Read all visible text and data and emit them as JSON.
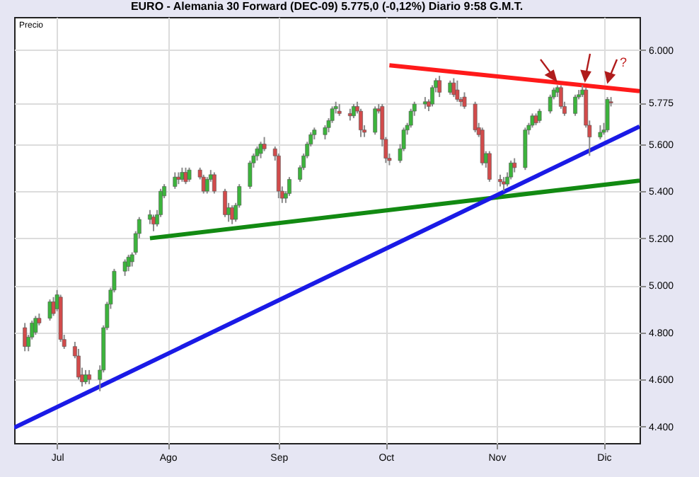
{
  "chart_data": {
    "type": "candlestick",
    "title": "EURO - Alemania 30 Forward (DEC-09)   5.775,0 (-0,12%)   Diario  9:58 G.M.T.",
    "ylabel": "Precio",
    "x": [
      "--06-22",
      "--06-23",
      "--06-24",
      "--06-25",
      "--06-26",
      "--06-29",
      "--06-30",
      "--07-01",
      "--07-02",
      "--07-03",
      "--07-06",
      "--07-07",
      "--07-08",
      "--07-09",
      "--07-10",
      "--07-13",
      "--07-14",
      "--07-15",
      "--07-16",
      "--07-17",
      "--07-20",
      "--07-21",
      "--07-22",
      "--07-23",
      "--07-24",
      "--07-27",
      "--07-28",
      "--07-29",
      "--07-30",
      "--07-31",
      "--08-03",
      "--08-04",
      "--08-05",
      "--08-06",
      "--08-07",
      "--08-10",
      "--08-11",
      "--08-12",
      "--08-13",
      "--08-14",
      "--08-17",
      "--08-18",
      "--08-19",
      "--08-20",
      "--08-21",
      "--08-24",
      "--08-25",
      "--08-26",
      "--08-27",
      "--08-28",
      "--08-31",
      "--09-01",
      "--09-02",
      "--09-03",
      "--09-04",
      "--09-07",
      "--09-08",
      "--09-09",
      "--09-10",
      "--09-11",
      "--09-14",
      "--09-15",
      "--09-16",
      "--09-17",
      "--09-18",
      "--09-21",
      "--09-22",
      "--09-23",
      "--09-24",
      "--09-25",
      "--09-28",
      "--09-29",
      "--09-30",
      "--10-01",
      "--10-02",
      "--10-05",
      "--10-06",
      "--10-07",
      "--10-08",
      "--10-09",
      "--10-12",
      "--10-13",
      "--10-14",
      "--10-15",
      "--10-16",
      "--10-19",
      "--10-20",
      "--10-21",
      "--10-22",
      "--10-23",
      "--10-26",
      "--10-27",
      "--10-28",
      "--10-29",
      "--10-30",
      "--11-02",
      "--11-03",
      "--11-04",
      "--11-05",
      "--11-06",
      "--11-09",
      "--11-10",
      "--11-11",
      "--11-12",
      "--11-13",
      "--11-16",
      "--11-17",
      "--11-18",
      "--11-19",
      "--11-20",
      "--11-23",
      "--11-24",
      "--11-25",
      "--11-26",
      "--11-27",
      "--11-30",
      "--12-01",
      "--12-02",
      "--12-03"
    ],
    "ohlc": [
      [
        4820,
        4840,
        4720,
        4740
      ],
      [
        4740,
        4790,
        4720,
        4780
      ],
      [
        4780,
        4850,
        4770,
        4840
      ],
      [
        4800,
        4870,
        4790,
        4860
      ],
      [
        4860,
        4880,
        4830,
        4840
      ],
      [
        4860,
        4940,
        4850,
        4930
      ],
      [
        4930,
        4950,
        4870,
        4880
      ],
      [
        4900,
        4980,
        4890,
        4960
      ],
      [
        4950,
        4960,
        4760,
        4770
      ],
      [
        4770,
        4790,
        4730,
        4740
      ],
      [
        4740,
        4760,
        4690,
        4700
      ],
      [
        4700,
        4730,
        4600,
        4610
      ],
      [
        4620,
        4650,
        4570,
        4590
      ],
      [
        4590,
        4640,
        4580,
        4620
      ],
      [
        4620,
        4640,
        4580,
        4600
      ],
      [
        4600,
        4660,
        4550,
        4640
      ],
      [
        4640,
        4830,
        4630,
        4820
      ],
      [
        4820,
        4930,
        4810,
        4920
      ],
      [
        4920,
        4990,
        4900,
        4980
      ],
      [
        4980,
        5070,
        4970,
        5060
      ],
      [
        5060,
        5110,
        5040,
        5100
      ],
      [
        5080,
        5130,
        5060,
        5120
      ],
      [
        5100,
        5140,
        5080,
        5130
      ],
      [
        5140,
        5230,
        5130,
        5220
      ],
      [
        5220,
        5290,
        5200,
        5280
      ],
      [
        5280,
        5320,
        5260,
        5300
      ],
      [
        5290,
        5300,
        5230,
        5260
      ],
      [
        5260,
        5320,
        5250,
        5300
      ],
      [
        5300,
        5410,
        5290,
        5400
      ],
      [
        5380,
        5430,
        5370,
        5420
      ],
      [
        5420,
        5480,
        5410,
        5460
      ],
      [
        5460,
        5480,
        5430,
        5450
      ],
      [
        5450,
        5500,
        5440,
        5480
      ],
      [
        5480,
        5500,
        5430,
        5440
      ],
      [
        5450,
        5500,
        5440,
        5490
      ],
      [
        5490,
        5500,
        5450,
        5460
      ],
      [
        5460,
        5470,
        5390,
        5400
      ],
      [
        5400,
        5460,
        5390,
        5450
      ],
      [
        5450,
        5490,
        5440,
        5470
      ],
      [
        5470,
        5480,
        5390,
        5400
      ],
      [
        5400,
        5410,
        5290,
        5300
      ],
      [
        5300,
        5350,
        5270,
        5330
      ],
      [
        5330,
        5340,
        5260,
        5280
      ],
      [
        5280,
        5350,
        5270,
        5340
      ],
      [
        5340,
        5430,
        5330,
        5420
      ],
      [
        5420,
        5530,
        5410,
        5520
      ],
      [
        5520,
        5560,
        5500,
        5550
      ],
      [
        5550,
        5590,
        5530,
        5580
      ],
      [
        5560,
        5610,
        5540,
        5600
      ],
      [
        5600,
        5630,
        5570,
        5580
      ],
      [
        5580,
        5590,
        5530,
        5550
      ],
      [
        5550,
        5560,
        5370,
        5400
      ],
      [
        5400,
        5420,
        5350,
        5370
      ],
      [
        5370,
        5400,
        5350,
        5390
      ],
      [
        5390,
        5460,
        5380,
        5450
      ],
      [
        5450,
        5510,
        5440,
        5500
      ],
      [
        5500,
        5560,
        5490,
        5550
      ],
      [
        5550,
        5610,
        5540,
        5600
      ],
      [
        5600,
        5650,
        5590,
        5640
      ],
      [
        5640,
        5670,
        5620,
        5660
      ],
      [
        5640,
        5680,
        5620,
        5670
      ],
      [
        5670,
        5710,
        5650,
        5700
      ],
      [
        5700,
        5760,
        5690,
        5750
      ],
      [
        5750,
        5780,
        5730,
        5760
      ],
      [
        5740,
        5770,
        5720,
        5730
      ],
      [
        5730,
        5750,
        5700,
        5720
      ],
      [
        5720,
        5770,
        5710,
        5760
      ],
      [
        5760,
        5780,
        5730,
        5740
      ],
      [
        5740,
        5750,
        5630,
        5660
      ],
      [
        5660,
        5680,
        5630,
        5650
      ],
      [
        5650,
        5760,
        5640,
        5750
      ],
      [
        5750,
        5770,
        5730,
        5740
      ],
      [
        5760,
        5770,
        5590,
        5620
      ],
      [
        5620,
        5630,
        5520,
        5540
      ],
      [
        5540,
        5560,
        5510,
        5530
      ],
      [
        5530,
        5600,
        5520,
        5580
      ],
      [
        5580,
        5670,
        5570,
        5660
      ],
      [
        5660,
        5690,
        5640,
        5680
      ],
      [
        5680,
        5750,
        5670,
        5740
      ],
      [
        5740,
        5780,
        5720,
        5770
      ],
      [
        5770,
        5800,
        5750,
        5780
      ],
      [
        5780,
        5790,
        5740,
        5760
      ],
      [
        5770,
        5850,
        5760,
        5840
      ],
      [
        5840,
        5880,
        5820,
        5870
      ],
      [
        5870,
        5890,
        5800,
        5820
      ],
      [
        5820,
        5870,
        5810,
        5860
      ],
      [
        5860,
        5880,
        5800,
        5810
      ],
      [
        5830,
        5870,
        5780,
        5790
      ],
      [
        5790,
        5800,
        5760,
        5780
      ],
      [
        5800,
        5820,
        5750,
        5760
      ],
      [
        5770,
        5780,
        5650,
        5660
      ],
      [
        5670,
        5690,
        5630,
        5640
      ],
      [
        5660,
        5670,
        5510,
        5520
      ],
      [
        5520,
        5570,
        5500,
        5560
      ],
      [
        5560,
        5570,
        5440,
        5450
      ],
      [
        5450,
        5470,
        5420,
        5440
      ],
      [
        5440,
        5460,
        5400,
        5430
      ],
      [
        5430,
        5480,
        5420,
        5460
      ],
      [
        5460,
        5530,
        5450,
        5520
      ],
      [
        5520,
        5540,
        5480,
        5500
      ],
      [
        5500,
        5670,
        5490,
        5660
      ],
      [
        5660,
        5690,
        5640,
        5680
      ],
      [
        5680,
        5730,
        5670,
        5720
      ],
      [
        5720,
        5730,
        5680,
        5690
      ],
      [
        5700,
        5750,
        5690,
        5740
      ],
      [
        5740,
        5810,
        5730,
        5800
      ],
      [
        5800,
        5840,
        5790,
        5830
      ],
      [
        5820,
        5850,
        5800,
        5840
      ],
      [
        5840,
        5850,
        5750,
        5760
      ],
      [
        5760,
        5780,
        5720,
        5730
      ],
      [
        5730,
        5810,
        5720,
        5800
      ],
      [
        5800,
        5830,
        5790,
        5810
      ],
      [
        5810,
        5850,
        5800,
        5830
      ],
      [
        5830,
        5840,
        5670,
        5680
      ],
      [
        5680,
        5700,
        5550,
        5630
      ],
      [
        5630,
        5680,
        5620,
        5650
      ],
      [
        5650,
        5690,
        5640,
        5660
      ],
      [
        5660,
        5800,
        5650,
        5790
      ],
      [
        5780,
        5800,
        5760,
        5775
      ]
    ],
    "series": [
      {
        "type": "line",
        "color": "#ff1a1a",
        "x": [
          "--10-02",
          "--12-11"
        ],
        "values": [
          5935,
          5825
        ]
      },
      {
        "type": "line",
        "color": "#128a12",
        "x": [
          "--07-27",
          "--12-11"
        ],
        "values": [
          5200,
          5445
        ]
      },
      {
        "type": "line",
        "color": "#1a1ae6",
        "x": [
          "--06-19",
          "--12-11"
        ],
        "values": [
          4395,
          5675
        ]
      }
    ],
    "annotations": [
      "?"
    ],
    "xlim": [
      "--06-19",
      "--12-11"
    ],
    "xticks": [
      {
        "value": "--07-01",
        "label": "Jul"
      },
      {
        "value": "--08-01",
        "label": "Ago"
      },
      {
        "value": "--09-01",
        "label": "Sep"
      },
      {
        "value": "--10-01",
        "label": "Oct"
      },
      {
        "value": "--11-01",
        "label": "Nov"
      },
      {
        "value": "--12-01",
        "label": "Dic"
      }
    ],
    "ylim": [
      4330,
      6140
    ],
    "yticks": [
      {
        "value": 4400,
        "label": "4.400"
      },
      {
        "value": 4600,
        "label": "4.600"
      },
      {
        "value": 4800,
        "label": "4.800"
      },
      {
        "value": 5000,
        "label": "5.000"
      },
      {
        "value": 5200,
        "label": "5.200"
      },
      {
        "value": 5400,
        "label": "5.400"
      },
      {
        "value": 5600,
        "label": "5.600"
      },
      {
        "value": 5775,
        "label": "5.775"
      },
      {
        "value": 6000,
        "label": "6.000"
      }
    ],
    "grid": true
  }
}
